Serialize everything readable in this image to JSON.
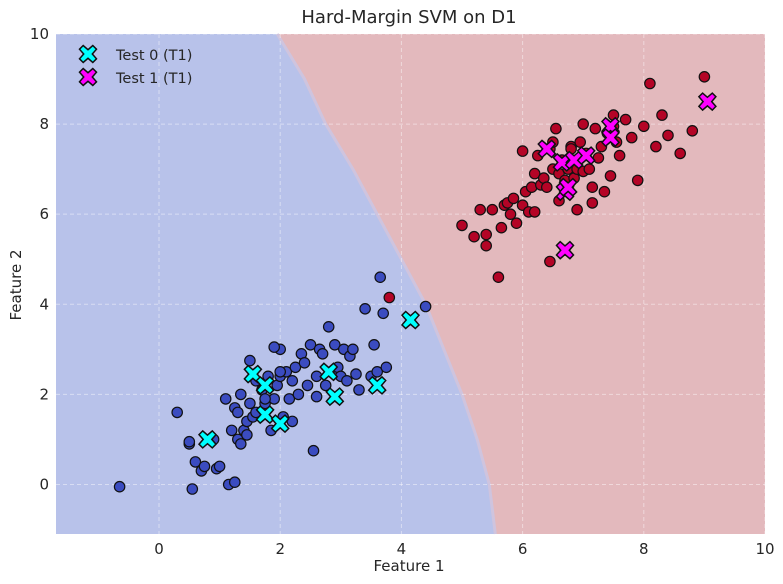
{
  "chart_data": {
    "type": "scatter",
    "title": "Hard-Margin SVM on D1",
    "xlabel": "Feature 1",
    "ylabel": "Feature 2",
    "xlim": [
      -1.7,
      10
    ],
    "ylim": [
      -1.1,
      10
    ],
    "x_ticks": [
      "0",
      "2",
      "4",
      "6",
      "8",
      "10"
    ],
    "y_ticks": [
      "0",
      "2",
      "4",
      "6",
      "8",
      "10"
    ],
    "grid": true,
    "legend_position": "top-left",
    "decision_boundary": [
      [
        1.95,
        10
      ],
      [
        2.4,
        9
      ],
      [
        2.75,
        8
      ],
      [
        3.2,
        7
      ],
      [
        3.6,
        6
      ],
      [
        4.0,
        5
      ],
      [
        4.4,
        4
      ],
      [
        4.7,
        3
      ],
      [
        5.0,
        2
      ],
      [
        5.25,
        1
      ],
      [
        5.45,
        0
      ],
      [
        5.55,
        -1.1
      ]
    ],
    "regions": {
      "class0_color": "#b8c2ea",
      "class1_color": "#e3b9bd"
    },
    "train_series": [
      {
        "class": "0",
        "color": "#3b4cc0",
        "x": [
          -0.65,
          0.3,
          0.5,
          0.5,
          0.6,
          0.7,
          0.75,
          0.85,
          0.9,
          0.95,
          1.0,
          1.1,
          1.15,
          1.2,
          1.25,
          1.3,
          1.3,
          1.35,
          1.4,
          1.45,
          1.5,
          1.5,
          1.55,
          1.6,
          1.6,
          1.7,
          1.75,
          1.8,
          1.85,
          1.9,
          1.95,
          2.0,
          2.0,
          2.05,
          2.1,
          2.15,
          2.2,
          2.2,
          2.25,
          2.3,
          2.35,
          2.4,
          2.45,
          2.5,
          2.55,
          2.6,
          2.65,
          2.7,
          2.75,
          2.8,
          2.85,
          2.9,
          2.95,
          3.0,
          3.05,
          3.1,
          3.15,
          3.2,
          3.25,
          3.3,
          3.4,
          3.5,
          3.55,
          3.6,
          3.65,
          3.7,
          3.75,
          4.4,
          1.25,
          1.35,
          1.45,
          1.75,
          2.0,
          2.6,
          1.9,
          0.55
        ],
        "y": [
          -0.05,
          1.6,
          0.9,
          0.95,
          0.5,
          0.3,
          0.4,
          1.0,
          1.0,
          0.35,
          0.4,
          1.9,
          0.0,
          1.2,
          1.7,
          1.0,
          1.6,
          2.0,
          1.2,
          1.4,
          1.8,
          2.75,
          1.5,
          2.3,
          1.6,
          2.1,
          1.8,
          2.4,
          1.2,
          1.9,
          2.2,
          3.0,
          2.4,
          1.5,
          2.5,
          1.9,
          2.3,
          1.4,
          2.6,
          2.0,
          2.9,
          2.7,
          2.2,
          3.1,
          0.75,
          2.4,
          3.0,
          2.9,
          2.2,
          3.5,
          2.5,
          3.1,
          2.6,
          2.4,
          3.0,
          2.3,
          2.85,
          3.0,
          2.45,
          2.1,
          3.9,
          2.4,
          3.1,
          2.5,
          4.6,
          3.8,
          2.6,
          3.95,
          0.05,
          0.9,
          1.1,
          1.9,
          2.5,
          1.95,
          3.05,
          -0.1
        ]
      },
      {
        "class": "1",
        "color": "#b40426",
        "x": [
          3.8,
          5.0,
          5.2,
          5.3,
          5.4,
          5.5,
          5.6,
          5.65,
          5.7,
          5.75,
          5.8,
          5.85,
          5.9,
          6.0,
          6.05,
          6.1,
          6.15,
          6.2,
          6.25,
          6.3,
          6.35,
          6.4,
          6.45,
          6.5,
          6.55,
          6.6,
          6.65,
          6.7,
          6.75,
          6.8,
          6.85,
          6.9,
          6.95,
          7.0,
          7.05,
          7.1,
          7.15,
          7.2,
          7.25,
          7.3,
          7.35,
          7.4,
          7.45,
          7.5,
          7.55,
          7.6,
          7.7,
          7.8,
          7.9,
          8.0,
          8.1,
          8.2,
          8.3,
          8.4,
          8.6,
          8.8,
          9.0,
          6.0,
          6.5,
          5.4,
          6.2,
          7.0,
          7.5,
          6.9,
          6.8,
          6.6,
          6.45,
          7.15
        ],
        "y": [
          4.15,
          5.75,
          5.5,
          6.1,
          5.3,
          6.1,
          4.6,
          5.7,
          6.2,
          6.25,
          6.0,
          6.35,
          5.8,
          6.2,
          6.5,
          6.05,
          6.6,
          6.9,
          7.3,
          6.65,
          6.8,
          6.6,
          7.45,
          7.0,
          7.9,
          6.9,
          7.2,
          6.75,
          7.0,
          7.5,
          6.8,
          7.0,
          7.6,
          6.95,
          7.35,
          7.0,
          6.25,
          7.9,
          7.25,
          7.5,
          6.5,
          7.8,
          6.85,
          7.95,
          7.6,
          7.3,
          8.1,
          7.7,
          6.75,
          7.95,
          8.9,
          7.5,
          8.2,
          7.75,
          7.35,
          7.85,
          9.05,
          7.4,
          7.6,
          5.55,
          6.05,
          8.0,
          8.2,
          6.1,
          7.45,
          6.3,
          4.95,
          6.6
        ]
      }
    ],
    "test_series": [
      {
        "name": "Test 0 (T1)",
        "color": "#00ffff",
        "x": [
          0.8,
          1.55,
          1.75,
          1.75,
          2.0,
          2.8,
          2.9,
          3.6,
          4.15
        ],
        "y": [
          1.0,
          2.45,
          2.2,
          1.55,
          1.35,
          2.5,
          1.95,
          2.2,
          3.65
        ]
      },
      {
        "name": "Test 1 (T1)",
        "color": "#ff00ff",
        "x": [
          6.4,
          6.65,
          6.7,
          6.75,
          6.85,
          7.05,
          7.45,
          7.45,
          9.05,
          6.7
        ],
        "y": [
          7.45,
          7.15,
          6.5,
          6.6,
          7.2,
          7.3,
          7.95,
          7.7,
          8.5,
          5.2
        ]
      }
    ]
  }
}
